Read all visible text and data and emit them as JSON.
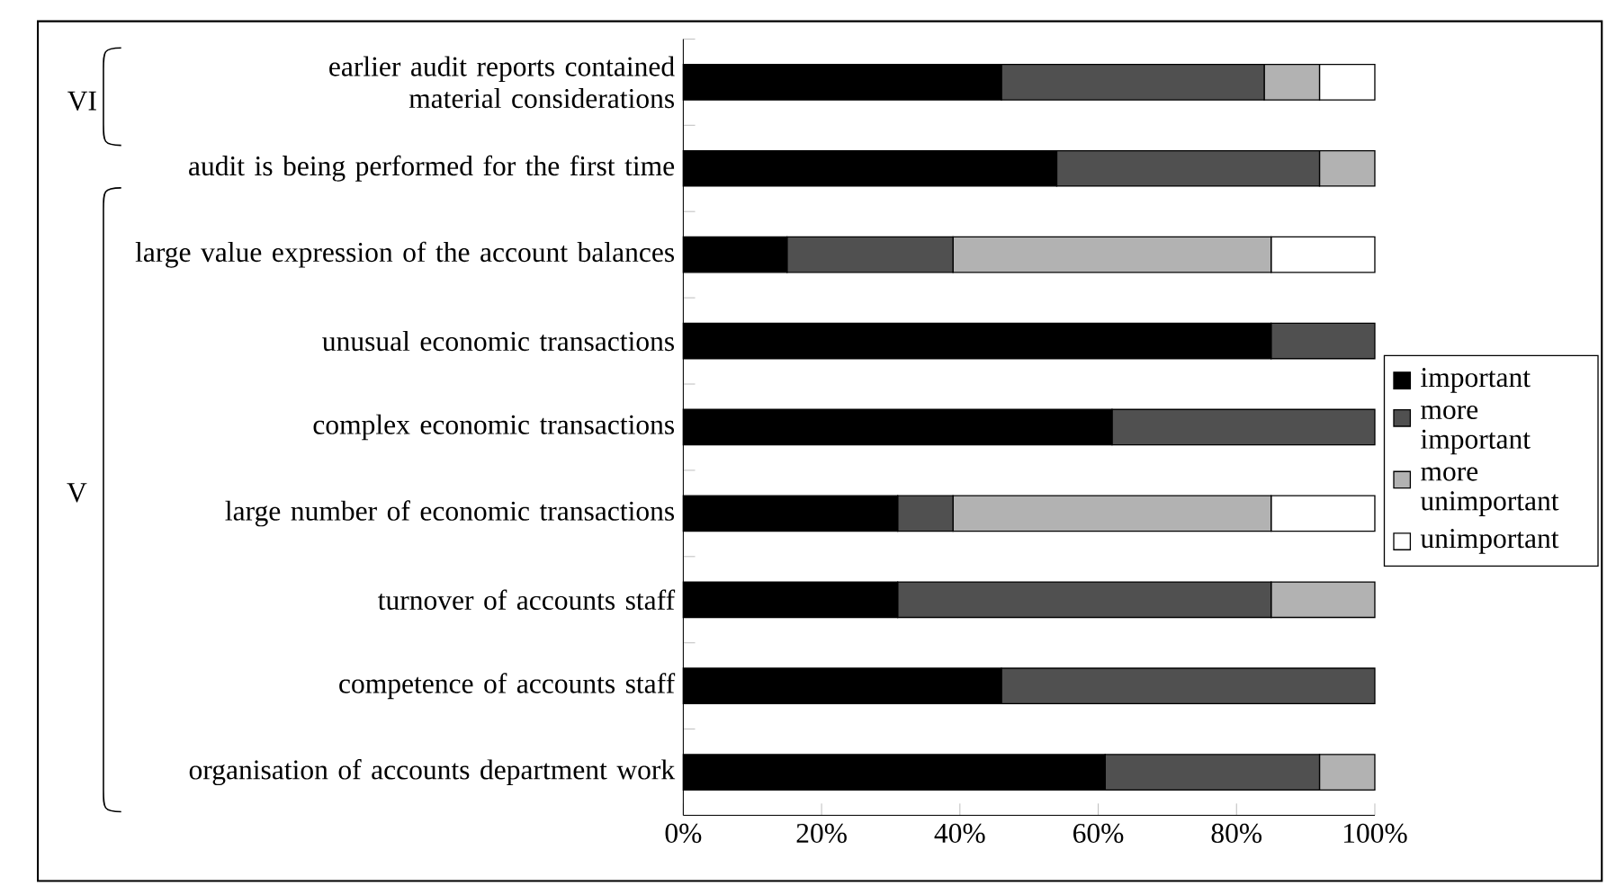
{
  "chart_data": {
    "type": "bar",
    "orientation": "horizontal",
    "stacked": true,
    "categories": [
      "earlier audit reports contained material considerations",
      "audit is being performed for the first time",
      "large value expression of the account balances",
      "unusual economic transactions",
      "complex economic transactions",
      "large number of economic transactions",
      "turnover of accounts staff",
      "competence of accounts staff",
      "organisation of accounts department work"
    ],
    "series": [
      {
        "name": "important",
        "color": "#000000",
        "values": [
          46,
          54,
          15,
          85,
          62,
          31,
          31,
          46,
          61
        ]
      },
      {
        "name": "more important",
        "color": "#505050",
        "values": [
          38,
          38,
          24,
          15,
          38,
          8,
          54,
          54,
          31
        ]
      },
      {
        "name": "more unimportant",
        "color": "#b2b2b2",
        "values": [
          8,
          8,
          46,
          0,
          0,
          46,
          15,
          0,
          8
        ]
      },
      {
        "name": "unimportant",
        "color": "#ffffff",
        "values": [
          8,
          0,
          15,
          0,
          0,
          15,
          0,
          0,
          0
        ]
      }
    ],
    "xlim": [
      0,
      100
    ],
    "xticks": [
      {
        "value": 0,
        "label": "0%"
      },
      {
        "value": 20,
        "label": "20%"
      },
      {
        "value": 40,
        "label": "40%"
      },
      {
        "value": 60,
        "label": "60%"
      },
      {
        "value": 80,
        "label": "80%"
      },
      {
        "value": 100,
        "label": "100%"
      }
    ],
    "legend": "right",
    "annotations": [
      "VI",
      "V"
    ]
  }
}
